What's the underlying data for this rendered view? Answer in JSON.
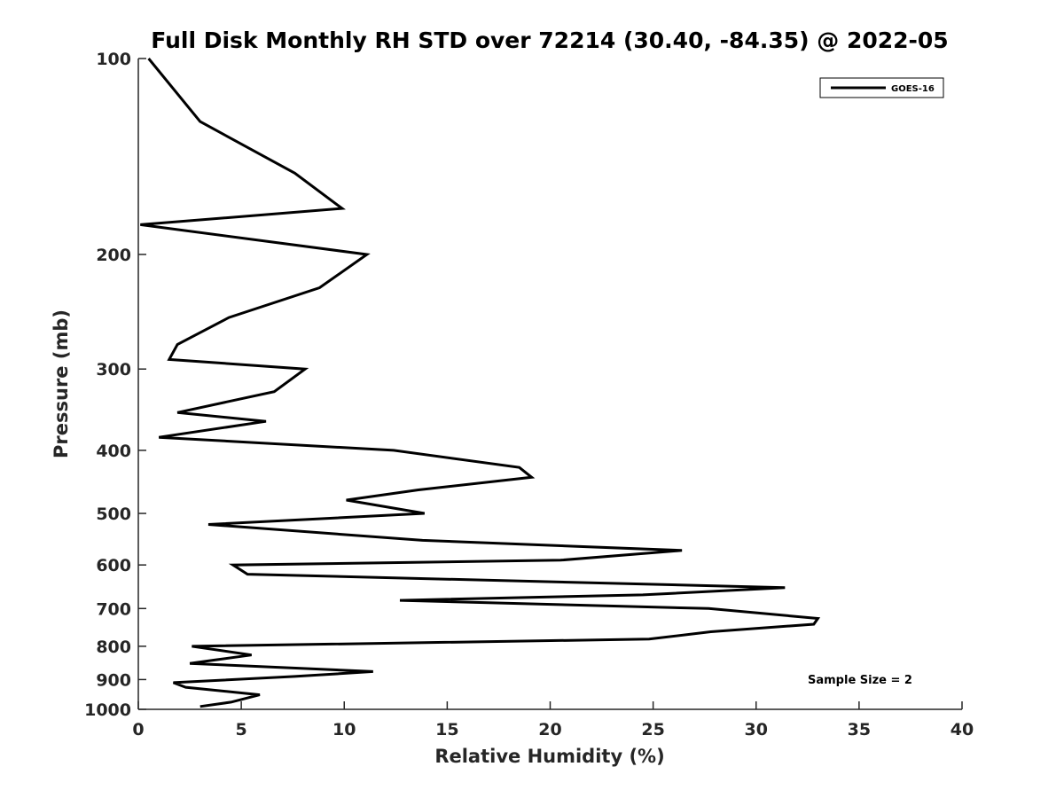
{
  "chart_data": {
    "type": "line",
    "title": "Full Disk Monthly RH STD over 72214 (30.40, -84.35) @ 2022-05",
    "xlabel": "Relative Humidity (%)",
    "ylabel": "Pressure (mb)",
    "xlim": [
      0,
      40
    ],
    "ylim": [
      100,
      1000
    ],
    "yscale": "log",
    "yreverse": true,
    "xticks": [
      0,
      5,
      10,
      15,
      20,
      25,
      30,
      35,
      40
    ],
    "yticks": [
      100,
      200,
      300,
      400,
      500,
      600,
      700,
      800,
      900,
      1000
    ],
    "grid": false,
    "legend_position": "top-right",
    "colors": {
      "line": "#000000",
      "axis": "#262626"
    },
    "series": [
      {
        "name": "GOES-16",
        "points": [
          [
            0.5,
            100
          ],
          [
            3.0,
            125
          ],
          [
            7.6,
            150
          ],
          [
            9.9,
            170
          ],
          [
            0.1,
            180
          ],
          [
            11.1,
            200
          ],
          [
            8.8,
            225
          ],
          [
            4.4,
            250
          ],
          [
            1.9,
            275
          ],
          [
            1.5,
            290
          ],
          [
            8.1,
            300
          ],
          [
            6.6,
            325
          ],
          [
            1.9,
            350
          ],
          [
            6.2,
            361
          ],
          [
            1.0,
            382
          ],
          [
            12.4,
            400
          ],
          [
            18.5,
            425
          ],
          [
            19.1,
            440
          ],
          [
            13.6,
            460
          ],
          [
            10.1,
            477
          ],
          [
            13.9,
            500
          ],
          [
            3.4,
            520
          ],
          [
            13.8,
            550
          ],
          [
            26.4,
            570
          ],
          [
            20.5,
            590
          ],
          [
            4.6,
            600
          ],
          [
            5.3,
            620
          ],
          [
            31.4,
            650
          ],
          [
            24.5,
            667
          ],
          [
            12.7,
            680
          ],
          [
            27.7,
            700
          ],
          [
            33.0,
            725
          ],
          [
            32.8,
            740
          ],
          [
            27.8,
            760
          ],
          [
            24.8,
            780
          ],
          [
            2.6,
            800
          ],
          [
            5.5,
            825
          ],
          [
            3.7,
            840
          ],
          [
            2.5,
            850
          ],
          [
            11.4,
            875
          ],
          [
            7.6,
            890
          ],
          [
            1.7,
            910
          ],
          [
            2.3,
            925
          ],
          [
            5.9,
            950
          ],
          [
            4.5,
            975
          ],
          [
            3.0,
            990
          ]
        ]
      }
    ],
    "annotations": [
      "Sample Size = 2"
    ]
  }
}
